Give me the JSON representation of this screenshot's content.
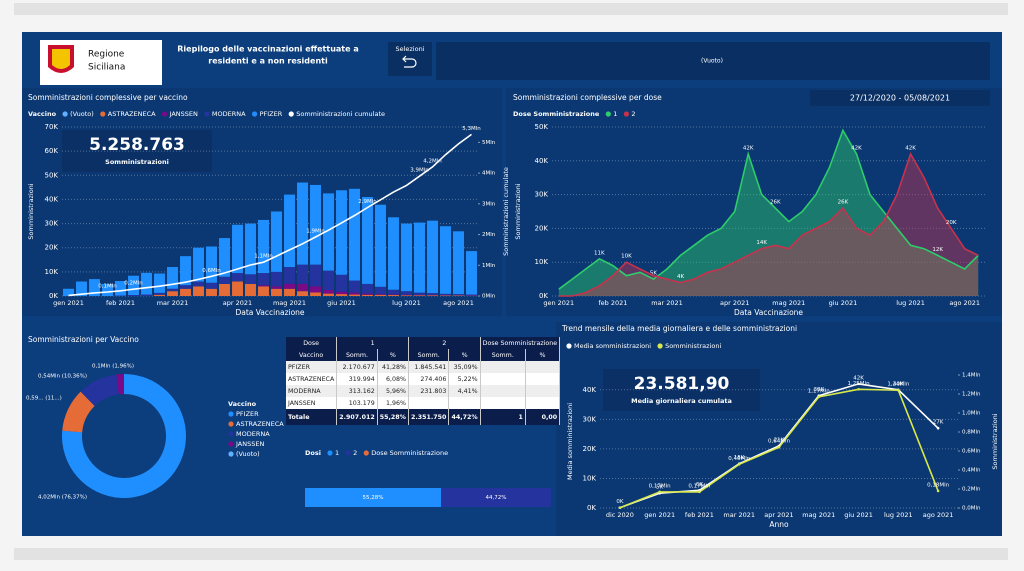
{
  "header": {
    "logo_text": [
      "Regione",
      "Siciliana"
    ],
    "title": [
      "Riepilogo delle vaccinazioni effettuate a",
      "residenti e a non residenti"
    ],
    "selection_button": "Selezioni",
    "selection_value": "(Vuoto)",
    "date_range": "27/12/2020 - 05/08/2021"
  },
  "kpis": [
    {
      "value": "5.258.763",
      "label": "Somministrazioni"
    },
    {
      "value": "23.581,90",
      "label": "Media giornaliera cumulata"
    }
  ],
  "table": {
    "groups": [
      "Dose",
      "1",
      "2",
      "Dose Somministrazione"
    ],
    "columns": [
      "Vaccino",
      "Somm.",
      "%",
      "Somm.",
      "%",
      "Somm.",
      "%"
    ],
    "rows": [
      [
        "PFIZER",
        "2.170.677",
        "41,28%",
        "1.845.541",
        "35,09%"
      ],
      [
        "ASTRAZENECA",
        "319.994",
        "6,08%",
        "274.406",
        "5,22%"
      ],
      [
        "MODERNA",
        "313.162",
        "5,96%",
        "231.803",
        "4,41%"
      ],
      [
        "JANSSEN",
        "103.179",
        "1,96%"
      ]
    ],
    "total": [
      "Totale",
      "2.907.012",
      "55,28%",
      "2.351.750",
      "44,72%",
      "1",
      "0,00"
    ]
  },
  "chart_data": [
    {
      "type": "bar",
      "title": "Somministrazioni complessive per vaccino",
      "legend_title": "Vaccino",
      "x_label": "Data Vaccinazione",
      "y_label": "Somministrazioni",
      "y2_label": "Somministrazioni cumulate",
      "categories": [
        "gen 2021",
        null,
        null,
        null,
        "feb 2021",
        null,
        null,
        null,
        "mar 2021",
        null,
        null,
        null,
        null,
        "apr 2021",
        null,
        null,
        null,
        "mag 2021",
        null,
        null,
        null,
        "giu 2021",
        null,
        null,
        null,
        null,
        "lug 2021",
        null,
        null,
        null,
        "ago 2021",
        null
      ],
      "ylim": [
        0,
        70000
      ],
      "yticks": [
        {
          "value": 0,
          "label": "0K"
        },
        {
          "value": 10000,
          "label": "10K"
        },
        {
          "value": 20000,
          "label": "20K"
        },
        {
          "value": 30000,
          "label": "30K"
        },
        {
          "value": 40000,
          "label": "40K"
        },
        {
          "value": 50000,
          "label": "50K"
        },
        {
          "value": 60000,
          "label": "60K"
        },
        {
          "value": 70000,
          "label": "70K"
        }
      ],
      "y2lim": [
        0,
        5500000
      ],
      "y2ticks": [
        {
          "value": 0,
          "label": "0Mln"
        },
        {
          "value": 1000000,
          "label": "1Mln"
        },
        {
          "value": 2000000,
          "label": "2Mln"
        },
        {
          "value": 3000000,
          "label": "3Mln"
        },
        {
          "value": 4000000,
          "label": "4Mln"
        },
        {
          "value": 5000000,
          "label": "5Mln"
        }
      ],
      "grid": true,
      "series": [
        {
          "name": "(Vuoto)",
          "color": "#5fb0ff",
          "values": [
            0,
            0,
            0,
            0,
            0,
            0,
            0,
            0,
            0,
            0,
            0,
            0,
            0,
            0,
            0,
            0,
            0,
            0,
            0,
            0,
            0,
            0,
            0,
            0,
            0,
            0,
            0,
            0,
            0,
            0,
            0,
            0
          ]
        },
        {
          "name": "ASTRAZENECA",
          "color": "#e66c37",
          "values": [
            0,
            0,
            0,
            0,
            0,
            0,
            0,
            500,
            2000,
            3000,
            4000,
            3000,
            5000,
            6000,
            5000,
            4000,
            3000,
            3000,
            2000,
            1500,
            1000,
            800,
            600,
            500,
            500,
            400,
            300,
            300,
            300,
            200,
            200,
            100
          ]
        },
        {
          "name": "JANSSEN",
          "color": "#7a0a86",
          "values": [
            0,
            0,
            0,
            0,
            0,
            0,
            0,
            0,
            0,
            0,
            0,
            0,
            0,
            0,
            0,
            500,
            1000,
            2000,
            3000,
            2500,
            1500,
            1000,
            800,
            500,
            300,
            200,
            200,
            100,
            100,
            100,
            100,
            100
          ]
        },
        {
          "name": "MODERNA",
          "color": "#24339e",
          "values": [
            0,
            0,
            0,
            0,
            200,
            400,
            600,
            800,
            1000,
            1500,
            2000,
            2500,
            3000,
            3500,
            4000,
            5000,
            6000,
            7000,
            8000,
            9000,
            8000,
            7000,
            5000,
            4000,
            3000,
            2000,
            1500,
            1000,
            800,
            600,
            500,
            400
          ]
        },
        {
          "name": "PFIZER",
          "color": "#1f8fff",
          "values": [
            3000,
            6000,
            7000,
            5000,
            6000,
            8000,
            9000,
            8000,
            9000,
            12000,
            14000,
            15000,
            16000,
            20000,
            21000,
            22000,
            25000,
            30000,
            34000,
            33000,
            32000,
            35000,
            38000,
            36000,
            34000,
            30000,
            28000,
            29000,
            30000,
            28000,
            26000,
            18000
          ]
        },
        {
          "name": "Somministrazioni cumulate",
          "color": "#ffffff",
          "type": "line",
          "axis": "y2",
          "values": [
            20000,
            60000,
            100000,
            130000,
            170000,
            220000,
            270000,
            320000,
            380000,
            450000,
            540000,
            640000,
            750000,
            880000,
            1010000,
            1100000,
            1300000,
            1500000,
            1700000,
            1920000,
            2140000,
            2380000,
            2620000,
            2880000,
            3130000,
            3380000,
            3600000,
            3900000,
            4200000,
            4600000,
            4950000,
            5258763
          ],
          "value_labels": [
            null,
            null,
            null,
            "0,1Mln",
            null,
            "0,2Mln",
            null,
            null,
            null,
            null,
            null,
            "0,6Mln",
            null,
            null,
            null,
            "1,1Mln",
            null,
            null,
            null,
            "1,9Mln",
            null,
            null,
            null,
            "2,9Mln",
            null,
            null,
            null,
            "3,9Mln",
            "4,2Mln",
            null,
            null,
            "5,3Mln"
          ]
        }
      ]
    },
    {
      "type": "area",
      "title": "Somministrazioni complessive per dose",
      "legend_title": "Dose Somministrazione",
      "x_label": "Data Vaccinazione",
      "y_label": "Somministrazioni",
      "categories": [
        "gen 2021",
        null,
        null,
        null,
        "feb 2021",
        null,
        null,
        null,
        "mar 2021",
        null,
        null,
        null,
        null,
        "apr 2021",
        null,
        null,
        null,
        "mag 2021",
        null,
        null,
        null,
        "giu 2021",
        null,
        null,
        null,
        null,
        "lug 2021",
        null,
        null,
        null,
        "ago 2021",
        null
      ],
      "ylim": [
        0,
        50000
      ],
      "yticks": [
        {
          "value": 0,
          "label": "0K"
        },
        {
          "value": 10000,
          "label": "10K"
        },
        {
          "value": 20000,
          "label": "20K"
        },
        {
          "value": 30000,
          "label": "30K"
        },
        {
          "value": 40000,
          "label": "40K"
        },
        {
          "value": 50000,
          "label": "50K"
        }
      ],
      "grid": true,
      "series": [
        {
          "name": "1",
          "color": "#2ecc6a",
          "values": [
            2000,
            5000,
            8000,
            11000,
            9000,
            6000,
            7000,
            5000,
            8000,
            12000,
            15000,
            18000,
            20000,
            25000,
            42000,
            30000,
            26000,
            22000,
            25000,
            30000,
            38000,
            49000,
            42000,
            30000,
            25000,
            20000,
            15000,
            14000,
            12000,
            10000,
            8000,
            12000
          ],
          "value_labels": [
            null,
            null,
            null,
            "11K",
            null,
            null,
            null,
            "5K",
            null,
            null,
            null,
            null,
            null,
            null,
            "42K",
            null,
            "26K",
            null,
            null,
            null,
            null,
            null,
            "42K",
            null,
            null,
            null,
            null,
            null,
            "12K",
            null,
            null,
            null
          ]
        },
        {
          "name": "2",
          "color": "#c8324e",
          "values": [
            0,
            0,
            1000,
            3000,
            6000,
            10000,
            8000,
            6000,
            5000,
            4000,
            5000,
            7000,
            8000,
            10000,
            12000,
            14000,
            15000,
            14000,
            18000,
            20000,
            22000,
            26000,
            20000,
            18000,
            22000,
            30000,
            42000,
            35000,
            26000,
            20000,
            14000,
            12000
          ],
          "value_labels": [
            null,
            null,
            null,
            null,
            null,
            "10K",
            null,
            null,
            null,
            "4K",
            null,
            null,
            null,
            null,
            null,
            "14K",
            null,
            null,
            null,
            null,
            null,
            "26K",
            null,
            null,
            null,
            null,
            "42K",
            null,
            null,
            "20K",
            null,
            null
          ]
        }
      ]
    },
    {
      "type": "donut",
      "title": "Somministrazioni per Vaccino",
      "legend_title": "Vaccino",
      "categories": [
        "PFIZER",
        "ASTRAZENECA",
        "MODERNA",
        "JANSSEN",
        "(Vuoto)"
      ],
      "values": [
        4016218,
        594400,
        544965,
        103179,
        1
      ],
      "value_labels": [
        "4,02Mln (76,37%)",
        "0,59... (11...)",
        "0,54Mln (10,36%)",
        "0,1Mln (1,96%)",
        null
      ],
      "colors": [
        "#1f8fff",
        "#e66c37",
        "#24339e",
        "#7a0a86",
        "#5fb0ff"
      ]
    },
    {
      "type": "line",
      "title": "Trend mensile della media giornaliera e delle somministrazioni",
      "x_label": "Anno",
      "y_label": "Media somministrazioni",
      "y2_label": "Somministrazioni",
      "categories": [
        "dic 2020",
        "gen 2021",
        "feb 2021",
        "mar 2021",
        "apr 2021",
        "mag 2021",
        "giu 2021",
        "lug 2021",
        "ago 2021"
      ],
      "ylim": [
        0,
        45000
      ],
      "yticks": [
        {
          "value": 0,
          "label": "0K"
        },
        {
          "value": 10000,
          "label": "10K"
        },
        {
          "value": 20000,
          "label": "20K"
        },
        {
          "value": 30000,
          "label": "30K"
        },
        {
          "value": 40000,
          "label": "40K"
        }
      ],
      "y2lim": [
        0,
        1400000
      ],
      "y2ticks": [
        {
          "value": 0,
          "label": "0,0Mln"
        },
        {
          "value": 200000,
          "label": "0,2Mln"
        },
        {
          "value": 400000,
          "label": "0,4Mln"
        },
        {
          "value": 600000,
          "label": "0,6Mln"
        },
        {
          "value": 800000,
          "label": "0,8Mln"
        },
        {
          "value": 1000000,
          "label": "1,0Mln"
        },
        {
          "value": 1200000,
          "label": "1,2Mln"
        },
        {
          "value": 1400000,
          "label": "1,4Mln"
        }
      ],
      "grid": true,
      "series": [
        {
          "name": "Media somministrazioni",
          "color": "#ffffff",
          "values": [
            100,
            5000,
            6000,
            15000,
            21000,
            38000,
            42000,
            40000,
            27000
          ],
          "value_labels": [
            "0K",
            "5K",
            "6K",
            "15K",
            "21K",
            "38K",
            "42K",
            "40K",
            "27K"
          ]
        },
        {
          "name": "Somministrazioni",
          "color": "#d8e84a",
          "axis": "y2",
          "values": [
            3000,
            170000,
            170000,
            460000,
            640000,
            1170000,
            1250000,
            1240000,
            180000
          ],
          "value_labels": [
            null,
            "0,17Mln",
            "0,17Mln",
            "0,46Mln",
            "0,64Mln",
            "1,17Mln",
            "1,25Mln",
            "1,24Mln",
            "0,18Mln"
          ]
        }
      ]
    },
    {
      "type": "stackedbar",
      "legend_title": "Dosi",
      "xlim": [
        0,
        100
      ],
      "series": [
        {
          "name": "1",
          "color": "#1f8fff",
          "values": [
            55.28
          ],
          "value_labels": [
            "55,28%"
          ]
        },
        {
          "name": "2",
          "color": "#24339e",
          "values": [
            44.72
          ],
          "value_labels": [
            "44,72%"
          ]
        },
        {
          "name": "Dose Somministrazione",
          "color": "#e66c37",
          "values": [
            0
          ]
        }
      ]
    }
  ]
}
